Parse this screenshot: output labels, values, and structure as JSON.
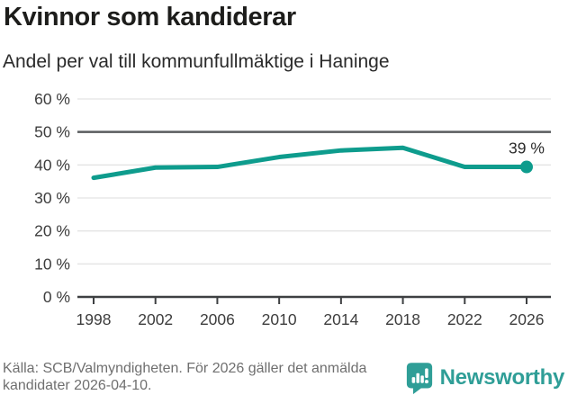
{
  "header": {
    "title": "Kvinnor som kandiderar",
    "subtitle": "Andel per val till kommunfullmäktige i Haninge"
  },
  "chart_data": {
    "type": "line",
    "title": "Kvinnor som kandiderar",
    "subtitle": "Andel per val till kommunfullmäktige i Haninge",
    "x": [
      "1998",
      "2002",
      "2006",
      "2010",
      "2014",
      "2018",
      "2022",
      "2026"
    ],
    "values": [
      36.1,
      39.2,
      39.4,
      42.4,
      44.4,
      45.2,
      39.4,
      39.4
    ],
    "ylim": [
      0,
      60
    ],
    "ytick_values": [
      0,
      10,
      20,
      30,
      40,
      50,
      60
    ],
    "ytick_labels": [
      "0 %",
      "10 %",
      "20 %",
      "30 %",
      "40 %",
      "50 %",
      "60 %"
    ],
    "reference_line": 50,
    "end_label": "39 %",
    "line_color": "#0e9c8d",
    "grid": "on",
    "legend": "none"
  },
  "colors": {
    "accent": "#0e9c8d",
    "brand": "#2f9e97",
    "grid": "#e4e4e4",
    "axis": "#3e4042",
    "reference": "#595c5e",
    "tick_text": "#3d3d3d",
    "annotation_text": "#2b2b2b"
  },
  "footer": {
    "source": "Källa: SCB/Valmyndigheten. För 2026 gäller det anmälda kandidater 2026-04-10.",
    "brand": "Newsworthy"
  }
}
